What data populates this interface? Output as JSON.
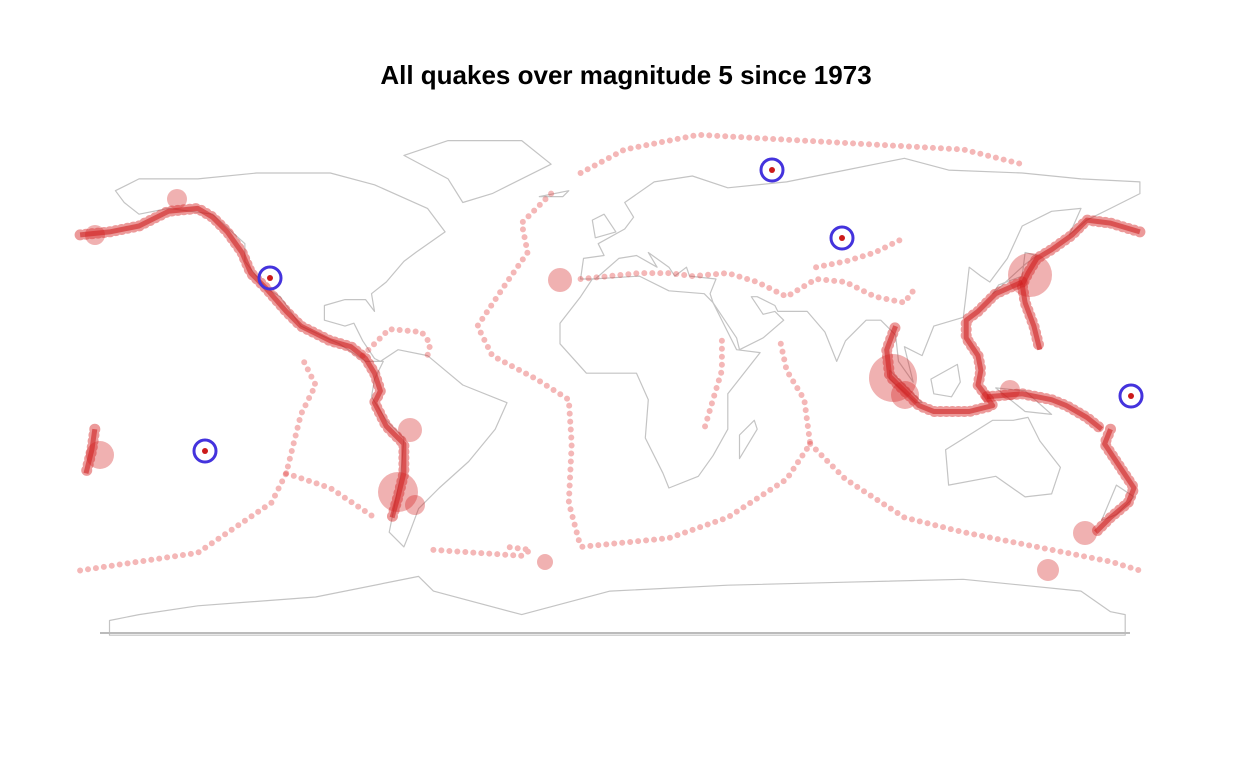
{
  "title": "All quakes over magnitude 5 since 1973"
}
